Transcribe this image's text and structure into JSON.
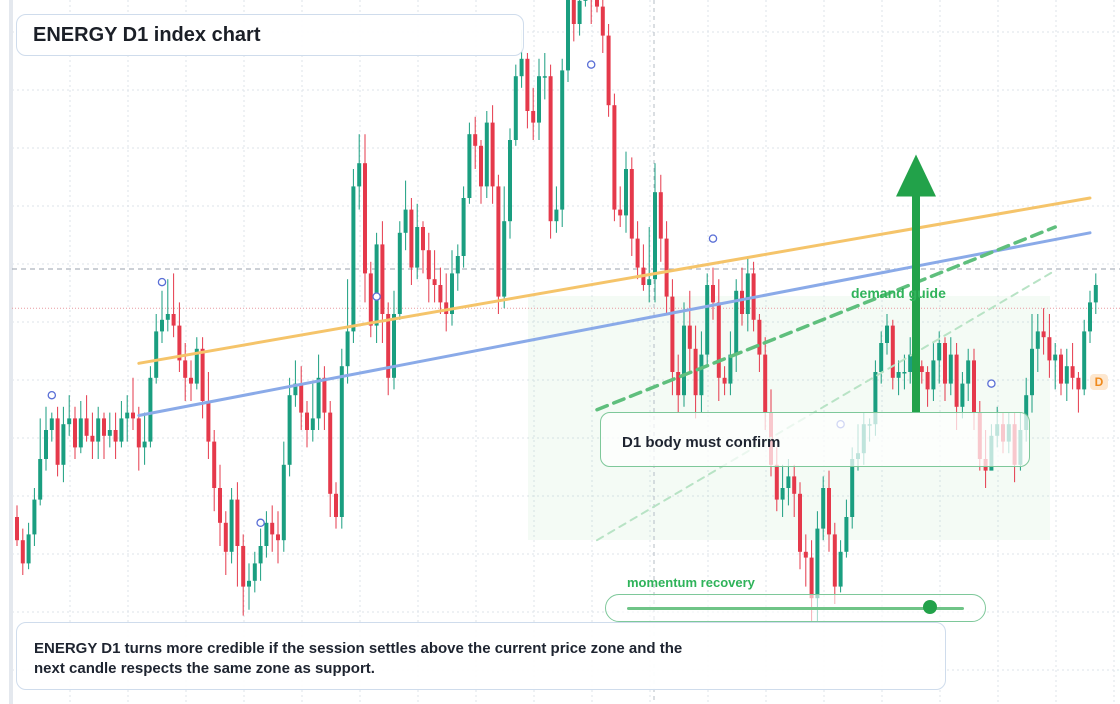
{
  "header": {
    "title": "ENERGY D1 index chart"
  },
  "annotations": {
    "confirm": "D1 body must confirm",
    "demand": "demand guide",
    "momentum": "momentum recovery",
    "momentum_level": 0.9,
    "note": "ENERGY D1 turns more credible if the session settles above the current price zone and the next candle respects the same zone as support.",
    "last_marker": "D"
  },
  "colors": {
    "bull": "#1a9e80",
    "bear": "#e5394b",
    "grid": "#dde3ea",
    "orange_line": "#f5c46a",
    "blue_line": "#8aaae8",
    "green": "#22a24a"
  },
  "chart_data": {
    "type": "candlestick",
    "title": "ENERGY D1 index chart",
    "price_range": [
      -20,
      210
    ],
    "current_level": 95.5,
    "reference_level": 82,
    "candles": [
      [
        10,
        2,
        14,
        0
      ],
      [
        2,
        -6,
        6,
        -10
      ],
      [
        -6,
        4,
        8,
        -8
      ],
      [
        4,
        16,
        20,
        0
      ],
      [
        16,
        30,
        44,
        14
      ],
      [
        30,
        40,
        48,
        26
      ],
      [
        40,
        44,
        46,
        36
      ],
      [
        44,
        28,
        48,
        24
      ],
      [
        28,
        42,
        48,
        22
      ],
      [
        42,
        44,
        52,
        38
      ],
      [
        44,
        34,
        48,
        30
      ],
      [
        34,
        44,
        50,
        32
      ],
      [
        44,
        38,
        52,
        36
      ],
      [
        38,
        36,
        46,
        30
      ],
      [
        36,
        44,
        48,
        30
      ],
      [
        44,
        38,
        46,
        30
      ],
      [
        38,
        40,
        46,
        34
      ],
      [
        40,
        36,
        46,
        30
      ],
      [
        36,
        44,
        50,
        34
      ],
      [
        44,
        46,
        52,
        36
      ],
      [
        46,
        44,
        58,
        40
      ],
      [
        44,
        34,
        48,
        26
      ],
      [
        34,
        36,
        46,
        28
      ],
      [
        36,
        58,
        62,
        34
      ],
      [
        58,
        74,
        80,
        56
      ],
      [
        74,
        78,
        88,
        70
      ],
      [
        78,
        80,
        92,
        74
      ],
      [
        80,
        76,
        94,
        72
      ],
      [
        76,
        64,
        84,
        60
      ],
      [
        64,
        58,
        70,
        50
      ],
      [
        58,
        56,
        64,
        50
      ],
      [
        56,
        68,
        72,
        54
      ],
      [
        68,
        50,
        72,
        44
      ],
      [
        50,
        36,
        60,
        30
      ],
      [
        36,
        20,
        40,
        12
      ],
      [
        20,
        8,
        28,
        0
      ],
      [
        8,
        -2,
        12,
        -10
      ],
      [
        -2,
        16,
        20,
        -6
      ],
      [
        16,
        0,
        22,
        -14
      ],
      [
        0,
        -14,
        4,
        -24
      ],
      [
        -14,
        -12,
        -6,
        -22
      ],
      [
        -12,
        -6,
        -2,
        -16
      ],
      [
        -6,
        0,
        6,
        -12
      ],
      [
        0,
        8,
        12,
        -4
      ],
      [
        8,
        4,
        14,
        -2
      ],
      [
        4,
        2,
        12,
        -6
      ],
      [
        2,
        28,
        36,
        -2
      ],
      [
        28,
        52,
        58,
        24
      ],
      [
        52,
        56,
        64,
        48
      ],
      [
        56,
        46,
        62,
        40
      ],
      [
        46,
        40,
        50,
        34
      ],
      [
        40,
        44,
        56,
        36
      ],
      [
        44,
        58,
        66,
        40
      ],
      [
        58,
        46,
        62,
        40
      ],
      [
        46,
        18,
        50,
        10
      ],
      [
        18,
        10,
        22,
        6
      ],
      [
        10,
        62,
        68,
        6
      ],
      [
        62,
        74,
        92,
        56
      ],
      [
        74,
        124,
        130,
        70
      ],
      [
        124,
        132,
        142,
        116
      ],
      [
        132,
        94,
        142,
        84
      ],
      [
        94,
        76,
        98,
        72
      ],
      [
        76,
        104,
        108,
        70
      ],
      [
        104,
        80,
        112,
        70
      ],
      [
        80,
        58,
        84,
        52
      ],
      [
        58,
        80,
        88,
        54
      ],
      [
        80,
        108,
        112,
        78
      ],
      [
        108,
        116,
        126,
        102
      ],
      [
        116,
        96,
        120,
        90
      ],
      [
        96,
        110,
        118,
        92
      ],
      [
        110,
        102,
        112,
        94
      ],
      [
        102,
        92,
        108,
        84
      ],
      [
        92,
        90,
        102,
        84
      ],
      [
        90,
        84,
        96,
        80
      ],
      [
        84,
        80,
        94,
        74
      ],
      [
        80,
        94,
        102,
        76
      ],
      [
        94,
        100,
        104,
        88
      ],
      [
        100,
        120,
        124,
        96
      ],
      [
        120,
        142,
        146,
        118
      ],
      [
        142,
        138,
        148,
        130
      ],
      [
        138,
        124,
        140,
        118
      ],
      [
        124,
        146,
        150,
        120
      ],
      [
        146,
        124,
        152,
        118
      ],
      [
        124,
        86,
        128,
        80
      ],
      [
        86,
        112,
        124,
        82
      ],
      [
        112,
        140,
        144,
        106
      ],
      [
        140,
        162,
        166,
        138
      ],
      [
        162,
        168,
        178,
        158
      ],
      [
        168,
        150,
        170,
        144
      ],
      [
        150,
        146,
        158,
        140
      ],
      [
        146,
        162,
        168,
        140
      ],
      [
        162,
        162,
        170,
        154
      ],
      [
        162,
        112,
        166,
        106
      ],
      [
        112,
        116,
        124,
        108
      ],
      [
        116,
        164,
        168,
        110
      ],
      [
        164,
        194,
        200,
        160
      ],
      [
        194,
        180,
        198,
        174
      ],
      [
        180,
        188,
        194,
        176
      ],
      [
        188,
        214,
        218,
        186
      ],
      [
        214,
        192,
        220,
        180
      ],
      [
        192,
        186,
        194,
        184
      ],
      [
        186,
        176,
        192,
        170
      ],
      [
        176,
        152,
        180,
        148
      ],
      [
        152,
        116,
        156,
        112
      ],
      [
        116,
        114,
        124,
        110
      ],
      [
        114,
        130,
        136,
        108
      ],
      [
        130,
        106,
        134,
        100
      ],
      [
        106,
        96,
        112,
        92
      ],
      [
        96,
        90,
        104,
        88
      ],
      [
        90,
        92,
        110,
        84
      ],
      [
        92,
        122,
        132,
        84
      ],
      [
        122,
        106,
        128,
        98
      ],
      [
        106,
        86,
        112,
        80
      ],
      [
        86,
        60,
        92,
        52
      ],
      [
        60,
        52,
        66,
        46
      ],
      [
        52,
        76,
        84,
        48
      ],
      [
        76,
        68,
        88,
        60
      ],
      [
        68,
        52,
        76,
        44
      ],
      [
        52,
        66,
        74,
        46
      ],
      [
        66,
        90,
        94,
        62
      ],
      [
        90,
        84,
        96,
        78
      ],
      [
        84,
        58,
        92,
        50
      ],
      [
        58,
        56,
        62,
        52
      ],
      [
        56,
        66,
        74,
        52
      ],
      [
        66,
        88,
        92,
        60
      ],
      [
        88,
        80,
        96,
        76
      ],
      [
        80,
        94,
        100,
        74
      ],
      [
        94,
        78,
        98,
        74
      ],
      [
        78,
        66,
        80,
        60
      ],
      [
        66,
        46,
        72,
        40
      ],
      [
        46,
        28,
        54,
        24
      ],
      [
        28,
        16,
        34,
        12
      ],
      [
        16,
        20,
        28,
        10
      ],
      [
        20,
        24,
        30,
        14
      ],
      [
        24,
        18,
        28,
        10
      ],
      [
        18,
        -2,
        22,
        -8
      ],
      [
        -2,
        -4,
        4,
        -14
      ],
      [
        -4,
        -18,
        2,
        -26
      ],
      [
        -18,
        6,
        12,
        -26
      ],
      [
        6,
        20,
        24,
        2
      ],
      [
        20,
        4,
        26,
        -2
      ],
      [
        4,
        -14,
        8,
        -20
      ],
      [
        -14,
        -2,
        2,
        -16
      ],
      [
        -2,
        10,
        16,
        -4
      ],
      [
        10,
        30,
        34,
        6
      ],
      [
        30,
        32,
        42,
        26
      ],
      [
        32,
        42,
        46,
        28
      ],
      [
        42,
        42,
        44,
        36
      ],
      [
        42,
        60,
        64,
        38
      ],
      [
        60,
        70,
        74,
        56
      ],
      [
        70,
        76,
        80,
        66
      ],
      [
        76,
        58,
        78,
        54
      ],
      [
        58,
        60,
        64,
        52
      ],
      [
        60,
        60,
        66,
        54
      ],
      [
        60,
        66,
        72,
        56
      ],
      [
        66,
        62,
        68,
        56
      ],
      [
        62,
        60,
        64,
        56
      ],
      [
        60,
        54,
        62,
        48
      ],
      [
        54,
        64,
        70,
        50
      ],
      [
        64,
        70,
        74,
        56
      ],
      [
        70,
        56,
        72,
        50
      ],
      [
        56,
        66,
        72,
        52
      ],
      [
        66,
        48,
        70,
        40
      ],
      [
        48,
        56,
        60,
        44
      ],
      [
        56,
        64,
        68,
        50
      ],
      [
        64,
        46,
        68,
        40
      ],
      [
        46,
        30,
        50,
        26
      ],
      [
        30,
        26,
        40,
        20
      ],
      [
        26,
        38,
        42,
        28
      ],
      [
        38,
        42,
        48,
        34
      ],
      [
        42,
        36,
        46,
        32
      ],
      [
        36,
        42,
        46,
        32
      ],
      [
        42,
        28,
        46,
        22
      ],
      [
        28,
        40,
        46,
        26
      ],
      [
        40,
        52,
        58,
        36
      ],
      [
        52,
        68,
        80,
        46
      ],
      [
        68,
        74,
        80,
        60
      ],
      [
        74,
        72,
        82,
        66
      ],
      [
        72,
        64,
        80,
        58
      ],
      [
        64,
        66,
        70,
        54
      ],
      [
        66,
        56,
        68,
        52
      ],
      [
        56,
        62,
        68,
        50
      ],
      [
        62,
        58,
        70,
        54
      ],
      [
        58,
        54,
        60,
        46
      ],
      [
        54,
        74,
        78,
        52
      ],
      [
        74,
        84,
        88,
        70
      ],
      [
        84,
        90,
        94,
        80
      ]
    ],
    "markers": [
      {
        "index": 6,
        "price": 52
      },
      {
        "index": 25,
        "price": 91
      },
      {
        "index": 42,
        "price": 8
      },
      {
        "index": 62,
        "price": 86
      },
      {
        "index": 99,
        "price": 166
      },
      {
        "index": 120,
        "price": 106
      },
      {
        "index": 142,
        "price": 42
      },
      {
        "index": 168,
        "price": 56
      }
    ],
    "trendlines": [
      {
        "name": "orange",
        "from": [
          21,
          63
        ],
        "to": [
          185,
          120
        ]
      },
      {
        "name": "blue",
        "from": [
          21,
          45
        ],
        "to": [
          185,
          108
        ]
      },
      {
        "name": "green-dashed",
        "from": [
          100,
          47
        ],
        "to": [
          179,
          110
        ]
      },
      {
        "name": "green-faint",
        "from": [
          100,
          2
        ],
        "to": [
          179,
          95
        ]
      }
    ],
    "demand_arrow": {
      "index": 155,
      "from": 46,
      "to": 135
    }
  }
}
